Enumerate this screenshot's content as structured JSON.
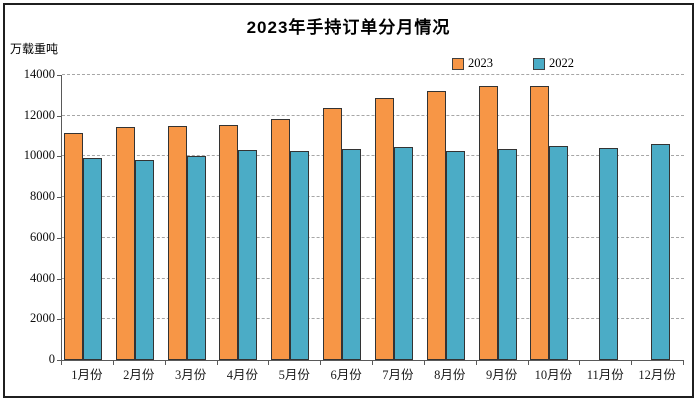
{
  "chart_data": {
    "type": "bar",
    "title": "2023年手持订单分月情况",
    "unit_label": "万载重吨",
    "categories": [
      "1月份",
      "2月份",
      "3月份",
      "4月份",
      "5月份",
      "6月份",
      "7月份",
      "8月份",
      "9月份",
      "10月份",
      "11月份",
      "12月份"
    ],
    "series": [
      {
        "name": "2023",
        "color": "#F79646",
        "values": [
          11100,
          11400,
          11450,
          11500,
          11800,
          12350,
          12800,
          13150,
          13400,
          13400,
          null,
          null
        ]
      },
      {
        "name": "2022",
        "color": "#4BACC6",
        "values": [
          9850,
          9800,
          9950,
          10250,
          10200,
          10300,
          10400,
          10200,
          10300,
          10450,
          10350,
          10550
        ]
      }
    ],
    "ylim": [
      0,
      14000
    ],
    "yticks": [
      0,
      2000,
      4000,
      6000,
      8000,
      10000,
      12000,
      14000
    ],
    "grid": "horizontal-dashed",
    "legend_position": "top-center",
    "xlabel": "",
    "ylabel": ""
  },
  "colors": {
    "bar_border": "#333333",
    "gridline": "#a6a6a6",
    "axis": "#595959",
    "frame": "#1f1f1f"
  }
}
